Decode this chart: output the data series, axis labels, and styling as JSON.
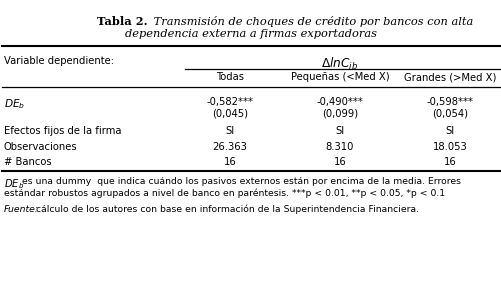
{
  "title_bold": "Tabla 2.",
  "title_italic_line1": " Transmisión de choques de crédito por bancos con alta",
  "title_italic_line2": "dependencia externa a firmas exportadoras",
  "dep_var_label": "Variable dependiente:",
  "col_headers": [
    "Todas",
    "Pequeñas (<Med X)",
    "Grandes (>Med X)"
  ],
  "row1_label": "DE_b",
  "row1_values": [
    "-0,582***",
    "-0,490***",
    "-0,598***"
  ],
  "row1_se": [
    "(0,045)",
    "(0,099)",
    "(0,054)"
  ],
  "row2_label": "Efectos fijos de la firma",
  "row2_values": [
    "SI",
    "SI",
    "SI"
  ],
  "row3_label": "Observaciones",
  "row3_values": [
    "26.363",
    "8.310",
    "18.053"
  ],
  "row4_label": "# Bancos",
  "row4_values": [
    "16",
    "16",
    "16"
  ],
  "footnote1a": "es una dummy  que indica cuándo los pasivos externos están por encima de la media. Errores",
  "footnote1b": "estándar robustos agrupados a nivel de banco en paréntesis. ***p < 0.01, **p < 0.05, *p < 0.1",
  "footnote2_italic": "Fuente:",
  "footnote2_rest": " cálculo de los autores con base en información de la Superintendencia Financiera.",
  "bg_color": "#ffffff",
  "text_color": "#000000",
  "font_size": 7.2,
  "title_font_size": 8.2
}
